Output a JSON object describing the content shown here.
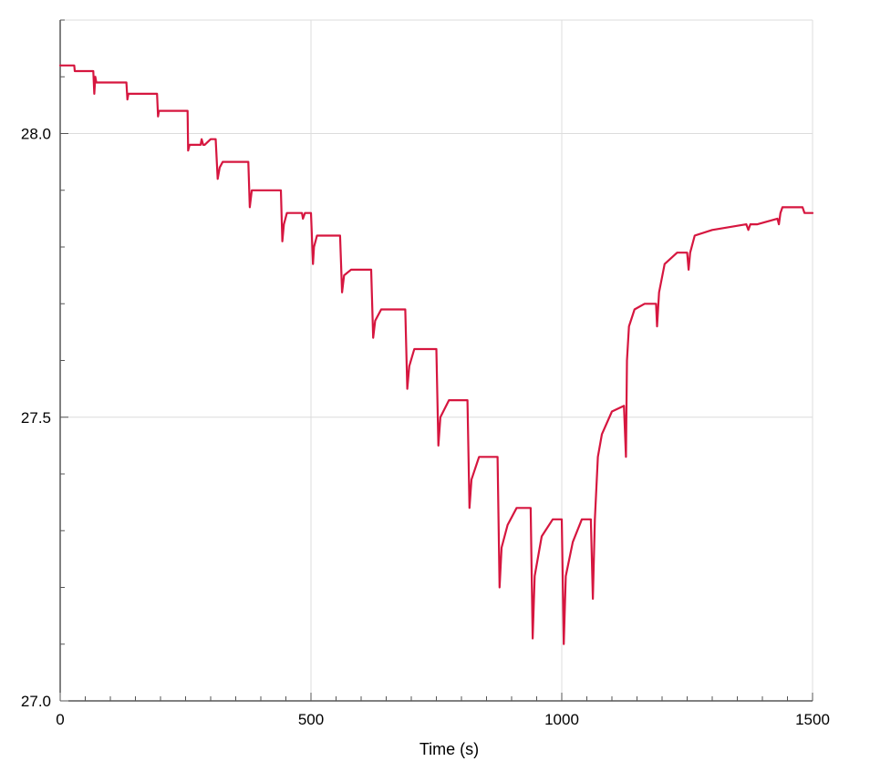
{
  "chart_data": {
    "type": "line",
    "title": "",
    "xlabel": "Time (s)",
    "ylabel": "",
    "xlim": [
      0,
      1500
    ],
    "ylim": [
      27.0,
      28.2
    ],
    "grid": true,
    "x_ticks": [
      0,
      500,
      1000,
      1500
    ],
    "x_tick_labels": [
      "0",
      "500",
      "1000",
      "1500"
    ],
    "x_minor_step": 50,
    "y_ticks": [
      27.0,
      27.5,
      28.0
    ],
    "y_tick_labels": [
      "27.0",
      "27.5",
      "28.0"
    ],
    "y_minor_step": 0.1,
    "series": [
      {
        "color": "#d6163f",
        "x": [
          0,
          28,
          29,
          66,
          68,
          70,
          72,
          132,
          134,
          136,
          193,
          195,
          197,
          254,
          255,
          258,
          262,
          280,
          282,
          285,
          288,
          300,
          310,
          314,
          318,
          324,
          375,
          378,
          382,
          440,
          443,
          446,
          452,
          482,
          484,
          488,
          500,
          504,
          506,
          512,
          558,
          562,
          566,
          580,
          620,
          624,
          628,
          640,
          688,
          692,
          696,
          706,
          750,
          754,
          758,
          775,
          812,
          816,
          820,
          835,
          872,
          876,
          880,
          892,
          910,
          938,
          942,
          946,
          960,
          982,
          1000,
          1004,
          1008,
          1022,
          1040,
          1058,
          1062,
          1066,
          1072,
          1080,
          1100,
          1124,
          1128,
          1130,
          1134,
          1145,
          1165,
          1188,
          1190,
          1194,
          1205,
          1230,
          1250,
          1253,
          1256,
          1265,
          1300,
          1368,
          1372,
          1376,
          1390,
          1430,
          1433,
          1436,
          1440,
          1455,
          1480,
          1484,
          1500
        ],
        "y": [
          28.12,
          28.12,
          28.11,
          28.11,
          28.07,
          28.1,
          28.09,
          28.09,
          28.06,
          28.07,
          28.07,
          28.03,
          28.04,
          28.04,
          27.97,
          27.98,
          27.98,
          27.98,
          27.99,
          27.98,
          27.98,
          27.99,
          27.99,
          27.92,
          27.94,
          27.95,
          27.95,
          27.87,
          27.9,
          27.9,
          27.81,
          27.84,
          27.86,
          27.86,
          27.85,
          27.86,
          27.86,
          27.77,
          27.8,
          27.82,
          27.82,
          27.72,
          27.75,
          27.76,
          27.76,
          27.64,
          27.67,
          27.69,
          27.69,
          27.55,
          27.59,
          27.62,
          27.62,
          27.45,
          27.5,
          27.53,
          27.53,
          27.34,
          27.39,
          27.43,
          27.43,
          27.2,
          27.27,
          27.31,
          27.34,
          27.34,
          27.11,
          27.22,
          27.29,
          27.32,
          27.32,
          27.1,
          27.22,
          27.28,
          27.32,
          27.32,
          27.18,
          27.32,
          27.43,
          27.47,
          27.51,
          27.52,
          27.43,
          27.6,
          27.66,
          27.69,
          27.7,
          27.7,
          27.66,
          27.72,
          27.77,
          27.79,
          27.79,
          27.76,
          27.79,
          27.82,
          27.83,
          27.84,
          27.83,
          27.84,
          27.84,
          27.85,
          27.84,
          27.86,
          27.87,
          27.87,
          27.87,
          27.86,
          27.86
        ]
      }
    ]
  }
}
